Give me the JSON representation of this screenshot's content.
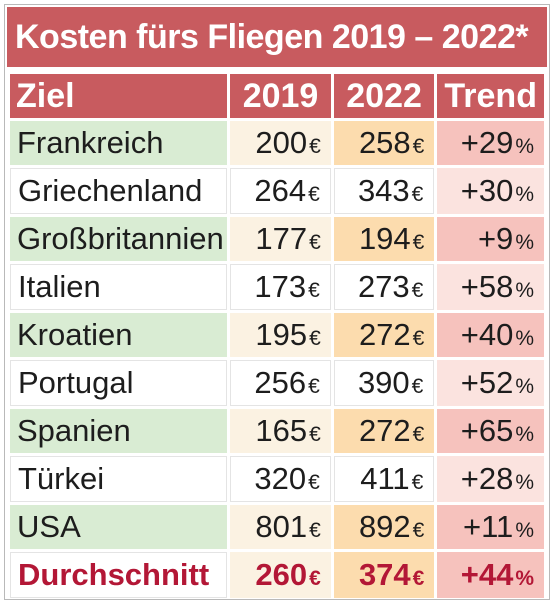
{
  "chart_data": {
    "type": "table",
    "title": "Kosten fürs Fliegen 2019 – 2022*",
    "columns": [
      "Ziel",
      "2019",
      "2022",
      "Trend"
    ],
    "currency_symbol": "€",
    "percent_symbol": "%",
    "rows": [
      {
        "ziel": "Frankreich",
        "v2019": 200,
        "v2022": 258,
        "trend": "+29"
      },
      {
        "ziel": "Griechenland",
        "v2019": 264,
        "v2022": 343,
        "trend": "+30"
      },
      {
        "ziel": "Großbritannien",
        "v2019": 177,
        "v2022": 194,
        "trend": "+9"
      },
      {
        "ziel": "Italien",
        "v2019": 173,
        "v2022": 273,
        "trend": "+58"
      },
      {
        "ziel": "Kroatien",
        "v2019": 195,
        "v2022": 272,
        "trend": "+40"
      },
      {
        "ziel": "Portugal",
        "v2019": 256,
        "v2022": 390,
        "trend": "+52"
      },
      {
        "ziel": "Spanien",
        "v2019": 165,
        "v2022": 272,
        "trend": "+65"
      },
      {
        "ziel": "Türkei",
        "v2019": 320,
        "v2022": 411,
        "trend": "+28"
      },
      {
        "ziel": "USA",
        "v2019": 801,
        "v2022": 892,
        "trend": "+11"
      },
      {
        "ziel": "Durchschnitt",
        "v2019": 260,
        "v2022": 374,
        "trend": "+44"
      }
    ]
  },
  "colors": {
    "header": "#c85b5f",
    "ziel_highlight": "#d9ecd3",
    "col2019": "#fbf2e2",
    "col2022": "#fcdcae",
    "trend": "#f6c2bd",
    "average_text": "#b31736"
  }
}
